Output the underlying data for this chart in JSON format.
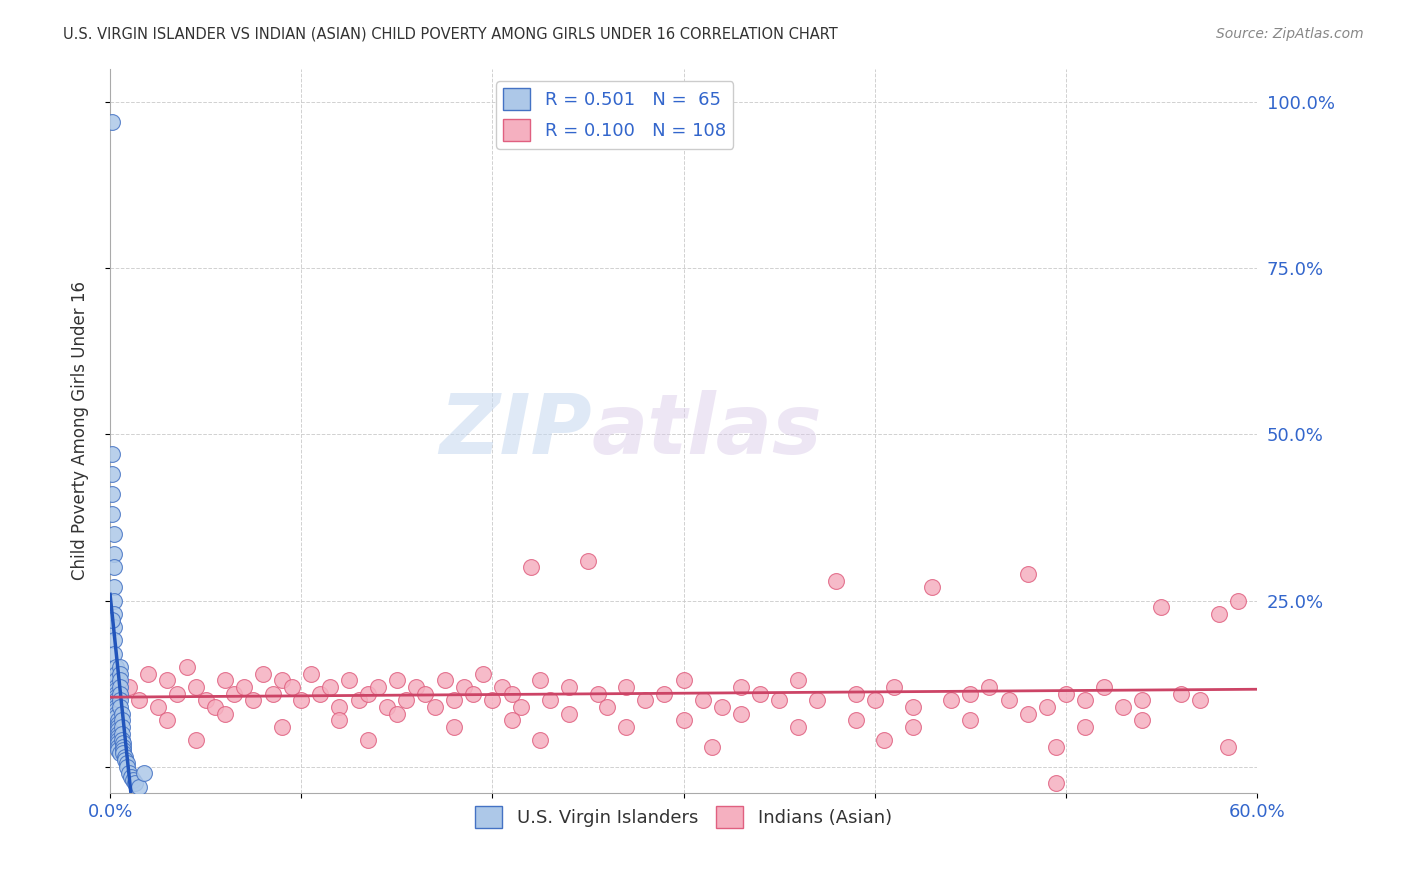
{
  "title": "U.S. VIRGIN ISLANDER VS INDIAN (ASIAN) CHILD POVERTY AMONG GIRLS UNDER 16 CORRELATION CHART",
  "source": "Source: ZipAtlas.com",
  "ylabel": "Child Poverty Among Girls Under 16",
  "yticks": [
    0.0,
    0.25,
    0.5,
    0.75,
    1.0
  ],
  "ytick_labels_right": [
    "",
    "25.0%",
    "50.0%",
    "75.0%",
    "100.0%"
  ],
  "xlim": [
    0.0,
    0.6
  ],
  "ylim": [
    -0.04,
    1.05
  ],
  "blue_R": 0.501,
  "blue_N": 65,
  "pink_R": 0.1,
  "pink_N": 108,
  "blue_color": "#adc8e8",
  "pink_color": "#f5b0c0",
  "blue_edge_color": "#4472c4",
  "pink_edge_color": "#e06080",
  "blue_line_color": "#2255bb",
  "pink_line_color": "#cc4466",
  "legend_label_blue": "U.S. Virgin Islanders",
  "legend_label_pink": "Indians (Asian)",
  "watermark_zip": "ZIP",
  "watermark_atlas": "atlas",
  "background_color": "#ffffff",
  "blue_scatter_x": [
    0.001,
    0.001,
    0.001,
    0.001,
    0.001,
    0.002,
    0.002,
    0.002,
    0.002,
    0.002,
    0.002,
    0.002,
    0.002,
    0.002,
    0.003,
    0.003,
    0.003,
    0.003,
    0.003,
    0.003,
    0.003,
    0.003,
    0.003,
    0.003,
    0.003,
    0.003,
    0.003,
    0.004,
    0.004,
    0.004,
    0.004,
    0.004,
    0.004,
    0.004,
    0.004,
    0.004,
    0.004,
    0.005,
    0.005,
    0.005,
    0.005,
    0.005,
    0.005,
    0.005,
    0.005,
    0.006,
    0.006,
    0.006,
    0.006,
    0.006,
    0.007,
    0.007,
    0.007,
    0.007,
    0.008,
    0.008,
    0.009,
    0.009,
    0.01,
    0.011,
    0.012,
    0.013,
    0.015,
    0.018,
    0.001
  ],
  "blue_scatter_y": [
    0.97,
    0.47,
    0.44,
    0.41,
    0.38,
    0.35,
    0.32,
    0.3,
    0.27,
    0.25,
    0.23,
    0.21,
    0.19,
    0.17,
    0.15,
    0.14,
    0.13,
    0.12,
    0.115,
    0.11,
    0.105,
    0.1,
    0.095,
    0.09,
    0.085,
    0.08,
    0.075,
    0.07,
    0.065,
    0.06,
    0.055,
    0.05,
    0.045,
    0.04,
    0.035,
    0.03,
    0.025,
    0.02,
    0.15,
    0.14,
    0.13,
    0.12,
    0.11,
    0.1,
    0.09,
    0.08,
    0.07,
    0.06,
    0.05,
    0.04,
    0.035,
    0.03,
    0.025,
    0.02,
    0.015,
    0.01,
    0.005,
    0.0,
    -0.01,
    -0.015,
    -0.02,
    -0.025,
    -0.03,
    -0.01,
    0.22
  ],
  "pink_scatter_x": [
    0.01,
    0.015,
    0.02,
    0.025,
    0.03,
    0.035,
    0.04,
    0.045,
    0.05,
    0.055,
    0.06,
    0.065,
    0.07,
    0.075,
    0.08,
    0.085,
    0.09,
    0.095,
    0.1,
    0.105,
    0.11,
    0.115,
    0.12,
    0.125,
    0.13,
    0.135,
    0.14,
    0.145,
    0.15,
    0.155,
    0.16,
    0.165,
    0.17,
    0.175,
    0.18,
    0.185,
    0.19,
    0.195,
    0.2,
    0.205,
    0.21,
    0.215,
    0.22,
    0.225,
    0.23,
    0.24,
    0.25,
    0.255,
    0.26,
    0.27,
    0.28,
    0.29,
    0.3,
    0.31,
    0.32,
    0.33,
    0.34,
    0.35,
    0.36,
    0.37,
    0.38,
    0.39,
    0.4,
    0.41,
    0.42,
    0.43,
    0.44,
    0.45,
    0.46,
    0.47,
    0.48,
    0.49,
    0.5,
    0.51,
    0.52,
    0.53,
    0.54,
    0.55,
    0.56,
    0.57,
    0.58,
    0.59,
    0.03,
    0.06,
    0.09,
    0.12,
    0.15,
    0.18,
    0.21,
    0.24,
    0.27,
    0.3,
    0.33,
    0.36,
    0.39,
    0.42,
    0.45,
    0.48,
    0.51,
    0.54,
    0.045,
    0.135,
    0.225,
    0.315,
    0.405,
    0.495,
    0.585,
    0.495
  ],
  "pink_scatter_y": [
    0.12,
    0.1,
    0.14,
    0.09,
    0.13,
    0.11,
    0.15,
    0.12,
    0.1,
    0.09,
    0.13,
    0.11,
    0.12,
    0.1,
    0.14,
    0.11,
    0.13,
    0.12,
    0.1,
    0.14,
    0.11,
    0.12,
    0.09,
    0.13,
    0.1,
    0.11,
    0.12,
    0.09,
    0.13,
    0.1,
    0.12,
    0.11,
    0.09,
    0.13,
    0.1,
    0.12,
    0.11,
    0.14,
    0.1,
    0.12,
    0.11,
    0.09,
    0.3,
    0.13,
    0.1,
    0.12,
    0.31,
    0.11,
    0.09,
    0.12,
    0.1,
    0.11,
    0.13,
    0.1,
    0.09,
    0.12,
    0.11,
    0.1,
    0.13,
    0.1,
    0.28,
    0.11,
    0.1,
    0.12,
    0.09,
    0.27,
    0.1,
    0.11,
    0.12,
    0.1,
    0.29,
    0.09,
    0.11,
    0.1,
    0.12,
    0.09,
    0.1,
    0.24,
    0.11,
    0.1,
    0.23,
    0.25,
    0.07,
    0.08,
    0.06,
    0.07,
    0.08,
    0.06,
    0.07,
    0.08,
    0.06,
    0.07,
    0.08,
    0.06,
    0.07,
    0.06,
    0.07,
    0.08,
    0.06,
    0.07,
    0.04,
    0.04,
    0.04,
    0.03,
    0.04,
    0.03,
    0.03,
    -0.025
  ]
}
